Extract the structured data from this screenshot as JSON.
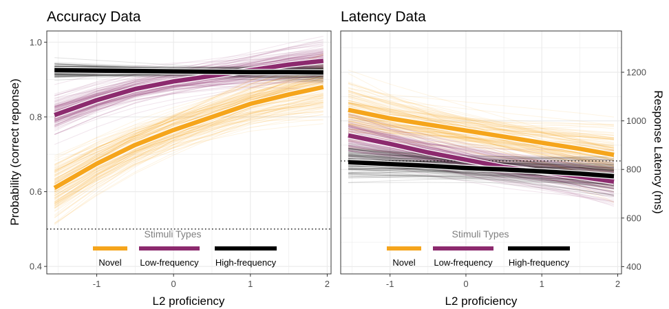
{
  "colors": {
    "novel": "#f5a51c",
    "low": "#8c2a6e",
    "high": "#000000",
    "grid": "#ebebeb",
    "border": "#333333"
  },
  "chart_data": [
    {
      "type": "line",
      "title": "Accuracy Data",
      "xlabel": "L2 proficiency",
      "ylabel": "Probability (correct reponse)",
      "xlim": [
        -1.65,
        2.05
      ],
      "ylim": [
        0.38,
        1.03
      ],
      "xticks": [
        -1,
        0,
        1,
        2
      ],
      "xtick_labels": [
        "-1",
        "0",
        "1",
        "2"
      ],
      "yticks": [
        0.4,
        0.6,
        0.8,
        1.0
      ],
      "ytick_labels": [
        "0.4",
        "0.6",
        "0.8",
        "1.0"
      ],
      "y_axis_side": "left",
      "grid": true,
      "reference_line": {
        "y": 0.5,
        "style": "dotted"
      },
      "legend": {
        "title": "Stimuli Types",
        "position": "bottom-inside",
        "labels": [
          "Novel",
          "Low-frequency",
          "High-frequency"
        ]
      },
      "x": [
        -1.55,
        -1.0,
        -0.5,
        0.0,
        0.5,
        1.0,
        1.5,
        1.95
      ],
      "series": [
        {
          "name": "Novel",
          "color_key": "novel",
          "values": [
            0.61,
            0.675,
            0.725,
            0.765,
            0.8,
            0.835,
            0.86,
            0.88
          ],
          "spread": 0.05
        },
        {
          "name": "Low-frequency",
          "color_key": "low",
          "values": [
            0.805,
            0.845,
            0.875,
            0.895,
            0.91,
            0.925,
            0.94,
            0.95
          ],
          "spread": 0.03
        },
        {
          "name": "High-frequency",
          "color_key": "high",
          "values": [
            0.925,
            0.924,
            0.923,
            0.922,
            0.921,
            0.92,
            0.92,
            0.919
          ],
          "spread": 0.012
        }
      ]
    },
    {
      "type": "line",
      "title": "Latency Data",
      "xlabel": "L2 proficiency",
      "ylabel": "Response Latency (ms)",
      "xlim": [
        -1.65,
        2.05
      ],
      "ylim": [
        370,
        1370
      ],
      "xticks": [
        -1,
        0,
        1,
        2
      ],
      "xtick_labels": [
        "-1",
        "0",
        "1",
        "2"
      ],
      "yticks": [
        400,
        600,
        800,
        1000,
        1200
      ],
      "ytick_labels": [
        "400",
        "600",
        "800",
        "1000",
        "1200"
      ],
      "y_axis_side": "right",
      "grid": true,
      "reference_line": {
        "y": 835,
        "style": "dotted"
      },
      "legend": {
        "title": "Stimuli Types",
        "position": "bottom-inside",
        "labels": [
          "Novel",
          "Low-frequency",
          "High-frequency"
        ]
      },
      "x": [
        -1.55,
        -1.0,
        -0.5,
        0.0,
        0.5,
        1.0,
        1.5,
        1.95
      ],
      "series": [
        {
          "name": "Novel",
          "color_key": "novel",
          "values": [
            1045,
            1010,
            985,
            960,
            935,
            910,
            885,
            860
          ],
          "spread": 70
        },
        {
          "name": "Low-frequency",
          "color_key": "low",
          "values": [
            940,
            905,
            870,
            840,
            810,
            790,
            770,
            750
          ],
          "spread": 55
        },
        {
          "name": "High-frequency",
          "color_key": "high",
          "values": [
            830,
            822,
            815,
            806,
            800,
            792,
            783,
            772
          ],
          "spread": 40
        }
      ]
    }
  ]
}
